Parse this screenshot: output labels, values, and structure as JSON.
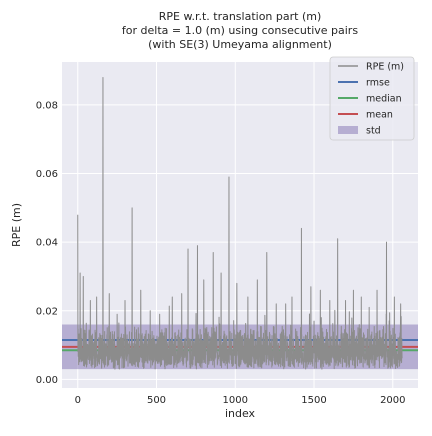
{
  "chart_data": {
    "type": "line",
    "title_lines": [
      "RPE w.r.t. translation part (m)",
      "for delta = 1.0 (m) using consecutive pairs",
      "(with SE(3) Umeyama alignment)"
    ],
    "xlabel": "index",
    "ylabel": "RPE (m)",
    "xlim": [
      -100,
      2160
    ],
    "ylim": [
      -0.0025,
      0.0925
    ],
    "x_ticks": [
      0,
      500,
      1000,
      1500,
      2000
    ],
    "y_ticks": [
      0.0,
      0.02,
      0.04,
      0.06,
      0.08
    ],
    "x_tick_labels": [
      "0",
      "500",
      "1000",
      "1500",
      "2000"
    ],
    "y_tick_labels": [
      "0.00",
      "0.02",
      "0.04",
      "0.06",
      "0.08"
    ],
    "grid": true,
    "legend_position": "top-right",
    "legend": [
      {
        "label": "RPE (m)",
        "kind": "line",
        "color": "#8c8c8c"
      },
      {
        "label": "rmse",
        "kind": "line",
        "color": "#4c72b0"
      },
      {
        "label": "median",
        "kind": "line",
        "color": "#55a868"
      },
      {
        "label": "mean",
        "kind": "line",
        "color": "#c44e52"
      },
      {
        "label": "std",
        "kind": "band",
        "color": "#8172b2"
      }
    ],
    "series": [
      {
        "name": "RPE (m)",
        "color": "#8c8c8c",
        "n_points": 2060,
        "x_step": 1,
        "baseline_range": [
          0.003,
          0.016
        ],
        "peaks": [
          {
            "x": 0,
            "y": 0.048
          },
          {
            "x": 15,
            "y": 0.031
          },
          {
            "x": 35,
            "y": 0.03
          },
          {
            "x": 80,
            "y": 0.023
          },
          {
            "x": 120,
            "y": 0.024
          },
          {
            "x": 160,
            "y": 0.088
          },
          {
            "x": 200,
            "y": 0.025
          },
          {
            "x": 250,
            "y": 0.019
          },
          {
            "x": 300,
            "y": 0.023
          },
          {
            "x": 345,
            "y": 0.05
          },
          {
            "x": 400,
            "y": 0.026
          },
          {
            "x": 460,
            "y": 0.02
          },
          {
            "x": 520,
            "y": 0.019
          },
          {
            "x": 600,
            "y": 0.024
          },
          {
            "x": 660,
            "y": 0.025
          },
          {
            "x": 700,
            "y": 0.038
          },
          {
            "x": 760,
            "y": 0.039
          },
          {
            "x": 800,
            "y": 0.029
          },
          {
            "x": 860,
            "y": 0.037
          },
          {
            "x": 910,
            "y": 0.031
          },
          {
            "x": 960,
            "y": 0.059
          },
          {
            "x": 1010,
            "y": 0.028
          },
          {
            "x": 1080,
            "y": 0.024
          },
          {
            "x": 1140,
            "y": 0.029
          },
          {
            "x": 1200,
            "y": 0.037
          },
          {
            "x": 1260,
            "y": 0.022
          },
          {
            "x": 1320,
            "y": 0.022
          },
          {
            "x": 1360,
            "y": 0.024
          },
          {
            "x": 1420,
            "y": 0.044
          },
          {
            "x": 1480,
            "y": 0.027
          },
          {
            "x": 1540,
            "y": 0.026
          },
          {
            "x": 1600,
            "y": 0.023
          },
          {
            "x": 1650,
            "y": 0.041
          },
          {
            "x": 1700,
            "y": 0.023
          },
          {
            "x": 1750,
            "y": 0.026
          },
          {
            "x": 1800,
            "y": 0.024
          },
          {
            "x": 1850,
            "y": 0.021
          },
          {
            "x": 1900,
            "y": 0.026
          },
          {
            "x": 1960,
            "y": 0.04
          },
          {
            "x": 2010,
            "y": 0.024
          },
          {
            "x": 2050,
            "y": 0.022
          }
        ]
      }
    ],
    "stats": {
      "rmse": 0.0115,
      "median": 0.0085,
      "mean": 0.0095,
      "std": 0.0065
    }
  }
}
